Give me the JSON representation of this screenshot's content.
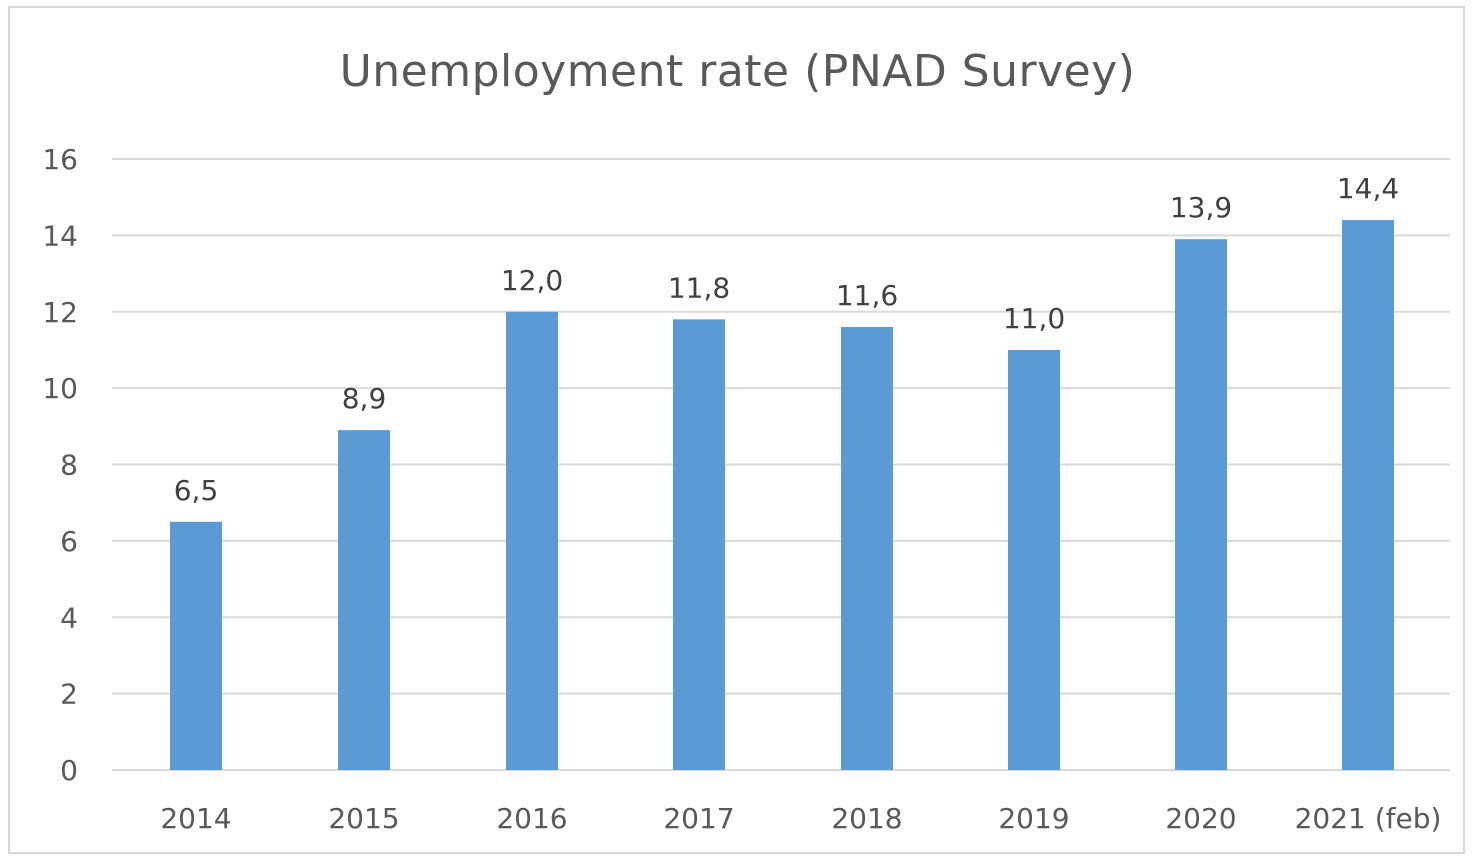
{
  "chart_data": {
    "type": "bar",
    "title": "Unemployment rate (PNAD Survey)",
    "xlabel": "",
    "ylabel": "",
    "categories": [
      "2014",
      "2015",
      "2016",
      "2017",
      "2018",
      "2019",
      "2020",
      "2021 (feb)"
    ],
    "values": [
      6.5,
      8.9,
      12.0,
      11.8,
      11.6,
      11.0,
      13.9,
      14.4
    ],
    "data_labels": [
      "6,5",
      "8,9",
      "12,0",
      "11,8",
      "11,6",
      "11,0",
      "13,9",
      "14,4"
    ],
    "ylim": [
      0,
      16
    ],
    "yticks": [
      "0",
      "2",
      "4",
      "6",
      "8",
      "10",
      "12",
      "14",
      "16"
    ],
    "grid": true,
    "legend": "none",
    "colors": {
      "bar": "#5b9bd5",
      "grid": "#d9d9d9"
    }
  }
}
